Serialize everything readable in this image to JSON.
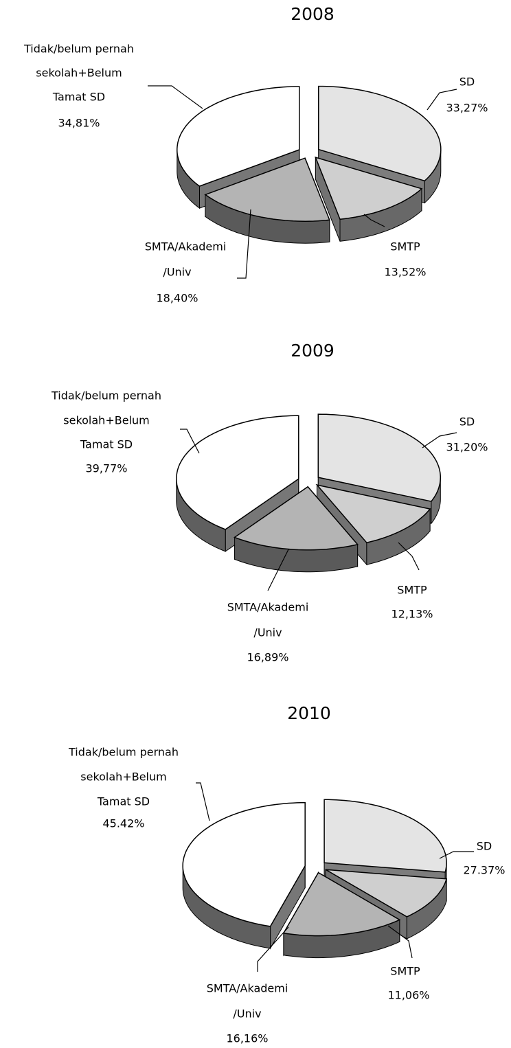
{
  "chart_data": [
    {
      "type": "pie",
      "title": "2008",
      "categories": [
        [
          "SD"
        ],
        [
          "SMTP"
        ],
        [
          "SMTA/Akademi",
          "/Univ"
        ],
        [
          "Tidak/belum pernah",
          "sekolah+Belum",
          "Tamat SD"
        ]
      ],
      "values": [
        33.27,
        13.52,
        18.4,
        34.81
      ],
      "value_labels": [
        "33,27%",
        "13,52%",
        "18,40%",
        "34,81%"
      ],
      "colors": [
        "#e4e4e4",
        "#cfcfcf",
        "#b4b4b4",
        "#ffffff"
      ]
    },
    {
      "type": "pie",
      "title": "2009",
      "categories": [
        [
          "SD"
        ],
        [
          "SMTP"
        ],
        [
          "SMTA/Akademi",
          "/Univ"
        ],
        [
          "Tidak/belum pernah",
          "sekolah+Belum",
          "Tamat SD"
        ]
      ],
      "values": [
        31.2,
        12.13,
        16.89,
        39.77
      ],
      "value_labels": [
        "31,20%",
        "12,13%",
        "16,89%",
        "39,77%"
      ],
      "colors": [
        "#e4e4e4",
        "#cfcfcf",
        "#b4b4b4",
        "#ffffff"
      ]
    },
    {
      "type": "pie",
      "title": "2010",
      "categories": [
        [
          "SD"
        ],
        [
          "SMTP"
        ],
        [
          "SMTA/Akademi",
          "/Univ"
        ],
        [
          "Tidak/belum pernah",
          "sekolah+Belum",
          "Tamat SD"
        ]
      ],
      "values": [
        27.37,
        11.06,
        16.16,
        45.42
      ],
      "value_labels": [
        "27.37%",
        "11,06%",
        "16,16%",
        "45.42%"
      ],
      "colors": [
        "#e4e4e4",
        "#cfcfcf",
        "#b4b4b4",
        "#ffffff"
      ]
    }
  ]
}
